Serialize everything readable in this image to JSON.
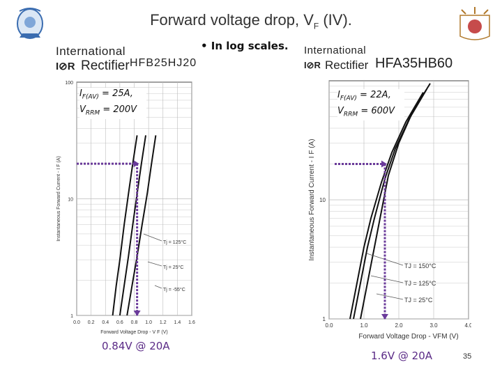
{
  "slide": {
    "title": "Forward voltage drop, V",
    "title_sub": "F",
    "title_suffix": " (IV).",
    "bullet": "• In log scales.",
    "page_number": "35"
  },
  "left_datasheet": {
    "brand_line1": "International",
    "brand_logo": "I⊘R",
    "brand_line2": "Rectifier",
    "part_number": "HFB25HJ20",
    "spec_line1": "I",
    "spec_line1_sub": "F(AV)",
    "spec_line1_val": " = 25A,",
    "spec_line2": "V",
    "spec_line2_sub": "RRM",
    "spec_line2_val": " = 200V",
    "result": "0.84V @ 20A"
  },
  "right_datasheet": {
    "brand_line1": "International",
    "brand_logo": "I⊘R",
    "brand_line2": "Rectifier",
    "part_number": "HFA35HB60",
    "spec_line1": "I",
    "spec_line1_sub": "F(AV)",
    "spec_line1_val": " = 22A,",
    "spec_line2": "V",
    "spec_line2_sub": "RRM",
    "spec_line2_val": " = 600V",
    "result": "1.6V @ 20A"
  },
  "colors": {
    "marker": "#6a3a9a",
    "curve": "#111111",
    "grid": "#bbbbbb"
  },
  "chart_data": [
    {
      "type": "line",
      "title": "",
      "xlabel": "Forward Voltage Drop - V F (V)",
      "ylabel": "Instantaneous Forward Current - I F (A)",
      "xlim": [
        0,
        1.6
      ],
      "ylim": [
        1,
        100
      ],
      "y_scale": "log",
      "x_ticks": [
        "0.0",
        "0.2",
        "0.4",
        "0.6",
        "0.8",
        "1.0",
        "1.2",
        "1.4",
        "1.6"
      ],
      "y_ticks": [
        "1",
        "10",
        "100"
      ],
      "annotations": [
        "Tj = 125°C",
        "Tj = 25°C",
        "Tj = -55°C"
      ],
      "series": [
        {
          "name": "Tj = 125°C",
          "x": [
            0.5,
            0.55,
            0.6,
            0.66,
            0.72,
            0.78,
            0.84
          ],
          "y": [
            1,
            1.8,
            3,
            6,
            11,
            20,
            35
          ]
        },
        {
          "name": "Tj = 25°C",
          "x": [
            0.6,
            0.66,
            0.72,
            0.78,
            0.84,
            0.9,
            0.96
          ],
          "y": [
            1,
            1.8,
            3.2,
            6,
            11,
            20,
            35
          ]
        },
        {
          "name": "Tj = -55°C",
          "x": [
            0.7,
            0.77,
            0.84,
            0.91,
            0.98,
            1.04,
            1.1
          ],
          "y": [
            1,
            1.8,
            3.2,
            6,
            11,
            20,
            35
          ]
        }
      ],
      "marker": {
        "x": 0.84,
        "y": 20
      }
    },
    {
      "type": "line",
      "title": "",
      "xlabel": "Forward Voltage Drop - VFM (V)",
      "ylabel": "Instantaneous Forward Current - I F (A)",
      "xlim": [
        0,
        4.0
      ],
      "ylim": [
        1,
        100
      ],
      "y_scale": "log",
      "x_ticks": [
        "0.0",
        "1.0",
        "2.0",
        "3.0",
        "4.0"
      ],
      "y_ticks": [
        "1",
        "10"
      ],
      "annotations": [
        "TJ = 150°C",
        "TJ = 125°C",
        "TJ = 25°C"
      ],
      "series": [
        {
          "name": "TJ = 150°C",
          "x": [
            0.6,
            0.8,
            1.0,
            1.2,
            1.5,
            1.8,
            2.2,
            2.7
          ],
          "y": [
            1,
            2,
            4,
            7,
            14,
            25,
            45,
            80
          ]
        },
        {
          "name": "TJ = 125°C",
          "x": [
            0.7,
            0.9,
            1.1,
            1.3,
            1.6,
            1.9,
            2.3,
            2.8
          ],
          "y": [
            1,
            2,
            4,
            7,
            15,
            27,
            48,
            85
          ]
        },
        {
          "name": "TJ = 25°C",
          "x": [
            0.9,
            1.1,
            1.3,
            1.5,
            1.7,
            2.0,
            2.4,
            2.9
          ],
          "y": [
            1,
            2,
            4,
            8,
            16,
            30,
            55,
            95
          ]
        }
      ],
      "marker": {
        "x": 1.6,
        "y": 20
      }
    }
  ]
}
